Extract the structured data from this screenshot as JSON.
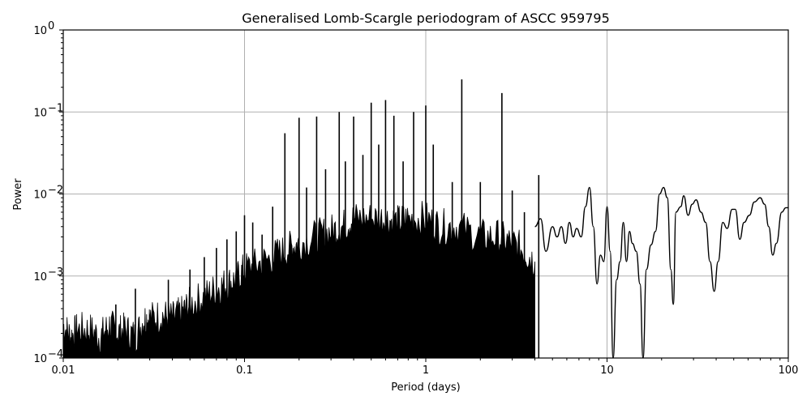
{
  "chart_data": {
    "type": "line",
    "title": "Generalised Lomb-Scargle periodogram of ASCC 959795",
    "xlabel": "Period (days)",
    "ylabel": "Power",
    "xscale": "log",
    "yscale": "log",
    "xlim": [
      0.01,
      100
    ],
    "ylim": [
      0.0001,
      1
    ],
    "grid": true,
    "legend": null,
    "x_ticks": [
      {
        "value": 0.01,
        "label": "0.01"
      },
      {
        "value": 0.1,
        "label": "0.1"
      },
      {
        "value": 1,
        "label": "1"
      },
      {
        "value": 10,
        "label": "10"
      },
      {
        "value": 100,
        "label": "100"
      }
    ],
    "y_ticks": [
      {
        "value": 1,
        "base": "10",
        "exp": "0"
      },
      {
        "value": 0.1,
        "base": "10",
        "exp": "−1"
      },
      {
        "value": 0.01,
        "base": "10",
        "exp": "−2"
      },
      {
        "value": 0.001,
        "base": "10",
        "exp": "−3"
      },
      {
        "value": 0.0001,
        "base": "10",
        "exp": "−4"
      }
    ],
    "noise_envelope": [
      [
        0.01,
        0.00025
      ],
      [
        0.011,
        0.00018
      ],
      [
        0.012,
        0.00022
      ],
      [
        0.014,
        0.00022
      ],
      [
        0.016,
        0.00018
      ],
      [
        0.018,
        0.00025
      ],
      [
        0.02,
        0.0002
      ],
      [
        0.022,
        0.00022
      ],
      [
        0.025,
        0.00018
      ],
      [
        0.028,
        0.0003
      ],
      [
        0.03,
        0.0003
      ],
      [
        0.035,
        0.00033
      ],
      [
        0.04,
        0.0003
      ],
      [
        0.045,
        0.00035
      ],
      [
        0.05,
        0.00045
      ],
      [
        0.06,
        0.00055
      ],
      [
        0.07,
        0.0007
      ],
      [
        0.08,
        0.0008
      ],
      [
        0.09,
        0.0009
      ],
      [
        0.1,
        0.0012
      ],
      [
        0.12,
        0.0014
      ],
      [
        0.15,
        0.0018
      ],
      [
        0.18,
        0.0022
      ],
      [
        0.2,
        0.0025
      ],
      [
        0.25,
        0.003
      ],
      [
        0.3,
        0.0035
      ],
      [
        0.35,
        0.004
      ],
      [
        0.4,
        0.005
      ],
      [
        0.5,
        0.005
      ],
      [
        0.6,
        0.005
      ],
      [
        0.7,
        0.0045
      ],
      [
        0.8,
        0.005
      ],
      [
        1.0,
        0.005
      ],
      [
        1.2,
        0.004
      ],
      [
        1.5,
        0.004
      ],
      [
        2.0,
        0.003
      ],
      [
        2.5,
        0.003
      ],
      [
        3.0,
        0.0025
      ],
      [
        3.5,
        0.002
      ],
      [
        4.0,
        0.0015
      ]
    ],
    "peaks": [
      {
        "period": 0.0195,
        "power": 0.00045
      },
      {
        "period": 0.025,
        "power": 0.0007
      },
      {
        "period": 0.038,
        "power": 0.0009
      },
      {
        "period": 0.05,
        "power": 0.0012
      },
      {
        "period": 0.06,
        "power": 0.0017
      },
      {
        "period": 0.07,
        "power": 0.0022
      },
      {
        "period": 0.08,
        "power": 0.0028
      },
      {
        "period": 0.09,
        "power": 0.0035
      },
      {
        "period": 0.1,
        "power": 0.0055
      },
      {
        "period": 0.111,
        "power": 0.0045
      },
      {
        "period": 0.125,
        "power": 0.0032
      },
      {
        "period": 0.143,
        "power": 0.007
      },
      {
        "period": 0.167,
        "power": 0.055
      },
      {
        "period": 0.2,
        "power": 0.085
      },
      {
        "period": 0.22,
        "power": 0.012
      },
      {
        "period": 0.25,
        "power": 0.088
      },
      {
        "period": 0.28,
        "power": 0.02
      },
      {
        "period": 0.333,
        "power": 0.1
      },
      {
        "period": 0.36,
        "power": 0.025
      },
      {
        "period": 0.4,
        "power": 0.088
      },
      {
        "period": 0.45,
        "power": 0.03
      },
      {
        "period": 0.5,
        "power": 0.13
      },
      {
        "period": 0.55,
        "power": 0.04
      },
      {
        "period": 0.6,
        "power": 0.14
      },
      {
        "period": 0.667,
        "power": 0.09
      },
      {
        "period": 0.75,
        "power": 0.025
      },
      {
        "period": 0.857,
        "power": 0.1
      },
      {
        "period": 1.0,
        "power": 0.12
      },
      {
        "period": 1.1,
        "power": 0.04
      },
      {
        "period": 1.4,
        "power": 0.014
      },
      {
        "period": 1.58,
        "power": 0.25
      },
      {
        "period": 2.0,
        "power": 0.014
      },
      {
        "period": 2.63,
        "power": 0.17
      },
      {
        "period": 3.0,
        "power": 0.011
      },
      {
        "period": 3.5,
        "power": 0.006
      },
      {
        "period": 4.2,
        "power": 0.017
      }
    ],
    "long_period_curve": [
      [
        4.0,
        0.004
      ],
      [
        4.3,
        0.005
      ],
      [
        4.6,
        0.002
      ],
      [
        5.0,
        0.004
      ],
      [
        5.3,
        0.003
      ],
      [
        5.6,
        0.004
      ],
      [
        5.9,
        0.0025
      ],
      [
        6.2,
        0.0045
      ],
      [
        6.5,
        0.003
      ],
      [
        6.8,
        0.0038
      ],
      [
        7.2,
        0.003
      ],
      [
        7.6,
        0.007
      ],
      [
        8.0,
        0.012
      ],
      [
        8.4,
        0.004
      ],
      [
        8.8,
        0.0008
      ],
      [
        9.2,
        0.0018
      ],
      [
        9.6,
        0.0015
      ],
      [
        10.0,
        0.007
      ],
      [
        10.4,
        0.002
      ],
      [
        10.8,
        0.0001
      ],
      [
        11.3,
        0.0009
      ],
      [
        11.8,
        0.0015
      ],
      [
        12.3,
        0.0045
      ],
      [
        12.8,
        0.0015
      ],
      [
        13.3,
        0.0035
      ],
      [
        13.8,
        0.0025
      ],
      [
        14.5,
        0.002
      ],
      [
        15.2,
        0.0008
      ],
      [
        15.8,
        0.0001
      ],
      [
        16.5,
        0.0012
      ],
      [
        17.5,
        0.0024
      ],
      [
        18.5,
        0.0035
      ],
      [
        19.5,
        0.01
      ],
      [
        20.5,
        0.012
      ],
      [
        21.5,
        0.009
      ],
      [
        22.5,
        0.0012
      ],
      [
        23.2,
        0.00045
      ],
      [
        24.0,
        0.006
      ],
      [
        25.5,
        0.007
      ],
      [
        26.5,
        0.0095
      ],
      [
        28.0,
        0.0055
      ],
      [
        29.5,
        0.0075
      ],
      [
        31.0,
        0.0085
      ],
      [
        33.0,
        0.006
      ],
      [
        35.0,
        0.0045
      ],
      [
        37.0,
        0.0015
      ],
      [
        39.0,
        0.00065
      ],
      [
        41.0,
        0.0015
      ],
      [
        43.5,
        0.0045
      ],
      [
        46.0,
        0.0038
      ],
      [
        49.0,
        0.0065
      ],
      [
        51.0,
        0.0065
      ],
      [
        54.0,
        0.0028
      ],
      [
        57.0,
        0.0045
      ],
      [
        61.0,
        0.0055
      ],
      [
        65.0,
        0.008
      ],
      [
        70.0,
        0.009
      ],
      [
        74.0,
        0.0075
      ],
      [
        78.0,
        0.004
      ],
      [
        82.0,
        0.0018
      ],
      [
        86.0,
        0.0025
      ],
      [
        92.0,
        0.006
      ],
      [
        97.0,
        0.0068
      ],
      [
        100.0,
        0.0068
      ]
    ]
  },
  "colors": {
    "line": "#000000",
    "grid": "#b0b0b0",
    "background": "#ffffff"
  }
}
